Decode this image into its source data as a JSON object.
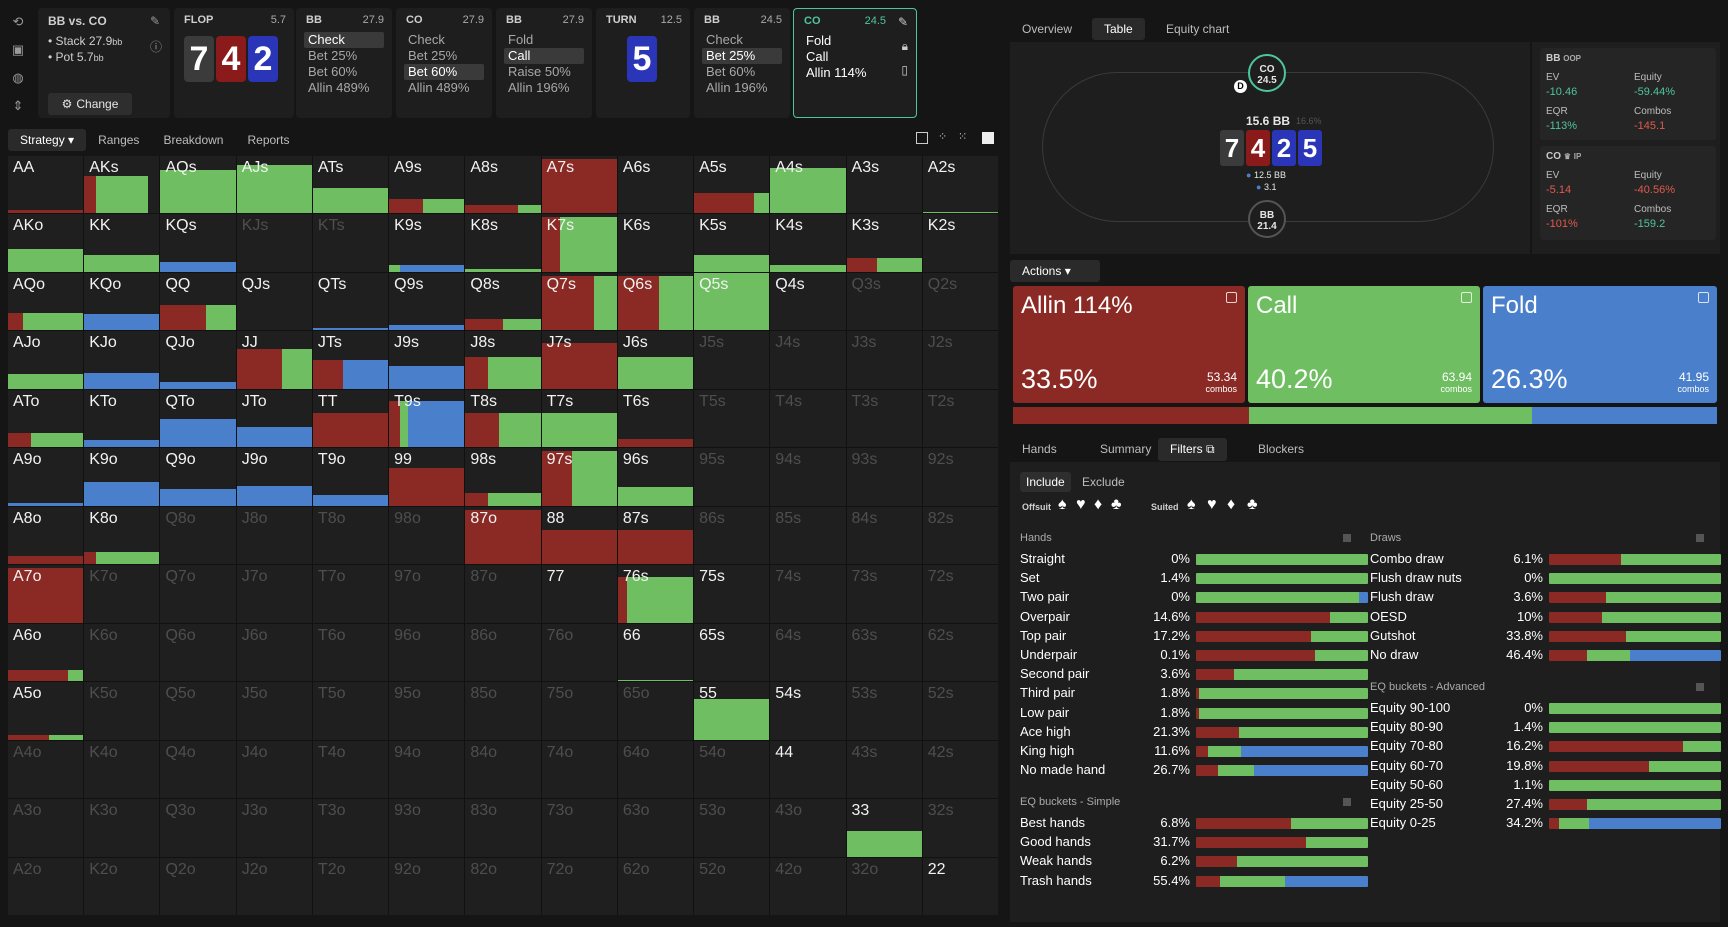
{
  "header": {
    "matchup": "BB vs. CO",
    "stack_label": "• Stack 27.9",
    "stack_unit": "bb",
    "pot_label": "• Pot 5.7",
    "pot_unit": "bb",
    "change_label": "Change"
  },
  "streets": [
    {
      "name": "FLOP",
      "size": "5.7"
    },
    {
      "name": "BB",
      "size": "27.9",
      "options": [
        "Check",
        "Bet 25%",
        "Bet 60%",
        "Allin 489%"
      ],
      "selected": 0
    },
    {
      "name": "CO",
      "size": "27.9",
      "options": [
        "Check",
        "Bet 25%",
        "Bet 60%",
        "Allin 489%"
      ],
      "selected": 2
    },
    {
      "name": "BB",
      "size": "27.9",
      "options": [
        "Fold",
        "Call",
        "Raise 50%",
        "Allin 196%"
      ],
      "selected": 1
    },
    {
      "name": "TURN",
      "size": "12.5"
    },
    {
      "name": "BB",
      "size": "24.5",
      "options": [
        "Check",
        "Bet 25%",
        "Bet 60%",
        "Allin 196%"
      ],
      "selected": 1
    },
    {
      "name": "CO",
      "size": "24.5",
      "options": [
        "Fold",
        "Call",
        "Allin 114%"
      ],
      "selected": -1
    }
  ],
  "flop_cards": [
    {
      "rank": "7",
      "suit": "spades"
    },
    {
      "rank": "4",
      "suit": "hearts"
    },
    {
      "rank": "2",
      "suit": "diamonds"
    }
  ],
  "turn_card": {
    "rank": "5",
    "suit": "diamonds"
  },
  "left_tabs": [
    "Strategy",
    "Ranges",
    "Breakdown",
    "Reports"
  ],
  "grid_cells": [
    [
      "AA",
      "AKs",
      "AQs",
      "AJs",
      "ATs",
      "A9s",
      "A8s",
      "A7s",
      "A6s",
      "A5s",
      "A4s",
      "A3s",
      "A2s"
    ],
    [
      "AKo",
      "KK",
      "KQs",
      "KJs",
      "KTs",
      "K9s",
      "K8s",
      "K7s",
      "K6s",
      "K5s",
      "K4s",
      "K3s",
      "K2s"
    ],
    [
      "AQo",
      "KQo",
      "QQ",
      "QJs",
      "QTs",
      "Q9s",
      "Q8s",
      "Q7s",
      "Q6s",
      "Q5s",
      "Q4s",
      "Q3s",
      "Q2s"
    ],
    [
      "AJo",
      "KJo",
      "QJo",
      "JJ",
      "JTs",
      "J9s",
      "J8s",
      "J7s",
      "J6s",
      "J5s",
      "J4s",
      "J3s",
      "J2s"
    ],
    [
      "ATo",
      "KTo",
      "QTo",
      "JTo",
      "TT",
      "T9s",
      "T8s",
      "T7s",
      "T6s",
      "T5s",
      "T4s",
      "T3s",
      "T2s"
    ],
    [
      "A9o",
      "K9o",
      "Q9o",
      "J9o",
      "T9o",
      "99",
      "98s",
      "97s",
      "96s",
      "95s",
      "94s",
      "93s",
      "92s"
    ],
    [
      "A8o",
      "K8o",
      "Q8o",
      "J8o",
      "T8o",
      "98o",
      "87o",
      "88",
      "87s",
      "86s",
      "85s",
      "84s",
      "82s"
    ],
    [
      "A7o",
      "K7o",
      "Q7o",
      "J7o",
      "T7o",
      "97o",
      "87o",
      "77",
      "76s",
      "75s",
      "74s",
      "73s",
      "72s"
    ],
    [
      "A6o",
      "K6o",
      "Q6o",
      "J6o",
      "T6o",
      "96o",
      "86o",
      "76o",
      "66",
      "65s",
      "64s",
      "63s",
      "62s"
    ],
    [
      "A5o",
      "K5o",
      "Q5o",
      "J5o",
      "T5o",
      "95o",
      "85o",
      "75o",
      "65o",
      "55",
      "54s",
      "53s",
      "52s"
    ],
    [
      "A4o",
      "K4o",
      "Q4o",
      "J4o",
      "T4o",
      "94o",
      "84o",
      "74o",
      "64o",
      "54o",
      "44",
      "43s",
      "42s"
    ],
    [
      "A3o",
      "K3o",
      "Q3o",
      "J3o",
      "T3o",
      "93o",
      "83o",
      "73o",
      "63o",
      "53o",
      "43o",
      "33",
      "32s"
    ],
    [
      "A2o",
      "K2o",
      "Q2o",
      "J2o",
      "T2o",
      "92o",
      "82o",
      "72o",
      "62o",
      "52o",
      "42o",
      "32o",
      "22"
    ]
  ],
  "right_tabs": [
    "Overview",
    "Table",
    "Equity chart"
  ],
  "table": {
    "pot": "15.6 BB",
    "pot_pct": "16.6%",
    "co_seat": {
      "name": "CO",
      "stack": "24.5"
    },
    "bb_seat": {
      "name": "BB",
      "stack": "21.4"
    },
    "dealer": "D",
    "bet1": "12.5 BB",
    "bet2": "3.1"
  },
  "board": [
    {
      "rank": "7",
      "suit": "spades"
    },
    {
      "rank": "4",
      "suit": "hearts"
    },
    {
      "rank": "2",
      "suit": "diamonds"
    },
    {
      "rank": "5",
      "suit": "diamonds"
    }
  ],
  "stats": {
    "bb": {
      "title": "BB",
      "pos": "OOP",
      "ev_label": "EV",
      "ev": "-10.46",
      "eq_label": "Equity",
      "eq": "-59.44%",
      "eqr_label": "EQR",
      "eqr": "-113%",
      "combos_label": "Combos",
      "combos": "-145.1"
    },
    "co": {
      "title": "CO",
      "pos": "IP",
      "ev_label": "EV",
      "ev": "-5.14",
      "eq_label": "Equity",
      "eq": "-40.56%",
      "eqr_label": "EQR",
      "eqr": "-101%",
      "combos_label": "Combos",
      "combos": "-159.2"
    }
  },
  "actions_label": "Actions",
  "actions": [
    {
      "name": "Allin 114%",
      "pct": "33.5%",
      "combos": "53.34",
      "combos_label": "combos",
      "color": "#8b2a25"
    },
    {
      "name": "Call",
      "pct": "40.2%",
      "combos": "63.94",
      "combos_label": "combos",
      "color": "#6fbe62"
    },
    {
      "name": "Fold",
      "pct": "26.3%",
      "combos": "41.95",
      "combos_label": "combos",
      "color": "#4a7fcb"
    }
  ],
  "action_fractions": [
    0.335,
    0.402,
    0.263
  ],
  "bottom_tabs": [
    "Hands",
    "Summary",
    "Filters",
    "Blockers"
  ],
  "include_label": "Include",
  "exclude_label": "Exclude",
  "offsuit_label": "Offsuit",
  "suited_label": "Suited",
  "hands_title": "Hands",
  "hands": [
    {
      "label": "Straight",
      "pct": "0%",
      "mix": [
        0,
        1,
        0
      ]
    },
    {
      "label": "Set",
      "pct": "1.4%",
      "mix": [
        0,
        1,
        0
      ]
    },
    {
      "label": "Two pair",
      "pct": "0%",
      "mix": [
        0,
        0.95,
        0.05
      ]
    },
    {
      "label": "Overpair",
      "pct": "14.6%",
      "mix": [
        0.78,
        0.22,
        0
      ]
    },
    {
      "label": "Top pair",
      "pct": "17.2%",
      "mix": [
        0.67,
        0.33,
        0
      ]
    },
    {
      "label": "Underpair",
      "pct": "0.1%",
      "mix": [
        0.69,
        0.31,
        0
      ]
    },
    {
      "label": "Second pair",
      "pct": "3.6%",
      "mix": [
        0.22,
        0.78,
        0
      ]
    },
    {
      "label": "Third pair",
      "pct": "1.8%",
      "mix": [
        0.02,
        0.98,
        0
      ]
    },
    {
      "label": "Low pair",
      "pct": "1.8%",
      "mix": [
        0.02,
        0.98,
        0
      ]
    },
    {
      "label": "Ace high",
      "pct": "21.3%",
      "mix": [
        0.25,
        0.75,
        0
      ]
    },
    {
      "label": "King high",
      "pct": "11.6%",
      "mix": [
        0.07,
        0.19,
        0.74
      ]
    },
    {
      "label": "No made hand",
      "pct": "26.7%",
      "mix": [
        0.13,
        0.21,
        0.66
      ]
    }
  ],
  "eq_simple_title": "EQ buckets - Simple",
  "eq_simple": [
    {
      "label": "Best hands",
      "pct": "6.8%",
      "mix": [
        0.55,
        0.45,
        0
      ]
    },
    {
      "label": "Good hands",
      "pct": "31.7%",
      "mix": [
        0.64,
        0.36,
        0
      ]
    },
    {
      "label": "Weak hands",
      "pct": "6.2%",
      "mix": [
        0.24,
        0.76,
        0
      ]
    },
    {
      "label": "Trash hands",
      "pct": "55.4%",
      "mix": [
        0.14,
        0.38,
        0.48
      ]
    }
  ],
  "draws_title": "Draws",
  "draws": [
    {
      "label": "Combo draw",
      "pct": "6.1%",
      "mix": [
        0.42,
        0.58,
        0
      ]
    },
    {
      "label": "Flush draw nuts",
      "pct": "0%",
      "mix": [
        0,
        1,
        0
      ]
    },
    {
      "label": "Flush draw",
      "pct": "3.6%",
      "mix": [
        0.33,
        0.67,
        0
      ]
    },
    {
      "label": "OESD",
      "pct": "10%",
      "mix": [
        0.31,
        0.69,
        0
      ]
    },
    {
      "label": "Gutshot",
      "pct": "33.8%",
      "mix": [
        0.45,
        0.55,
        0
      ]
    },
    {
      "label": "No draw",
      "pct": "46.4%",
      "mix": [
        0.22,
        0.25,
        0.53
      ]
    }
  ],
  "eq_adv_title": "EQ buckets - Advanced",
  "eq_adv": [
    {
      "label": "Equity 90-100",
      "pct": "0%",
      "mix": [
        0,
        1,
        0
      ]
    },
    {
      "label": "Equity 80-90",
      "pct": "1.4%",
      "mix": [
        0,
        1,
        0
      ]
    },
    {
      "label": "Equity 70-80",
      "pct": "16.2%",
      "mix": [
        0.78,
        0.22,
        0
      ]
    },
    {
      "label": "Equity 60-70",
      "pct": "19.8%",
      "mix": [
        0.58,
        0.42,
        0
      ]
    },
    {
      "label": "Equity 50-60",
      "pct": "1.1%",
      "mix": [
        0,
        1,
        0
      ]
    },
    {
      "label": "Equity 25-50",
      "pct": "27.4%",
      "mix": [
        0.22,
        0.78,
        0
      ]
    },
    {
      "label": "Equity 0-25",
      "pct": "34.2%",
      "mix": [
        0.06,
        0.17,
        0.77
      ]
    }
  ],
  "colors": {
    "allin": "#8b2a25",
    "call": "#6fbe62",
    "fold": "#4a7fcb",
    "accent": "#4fc59a"
  }
}
